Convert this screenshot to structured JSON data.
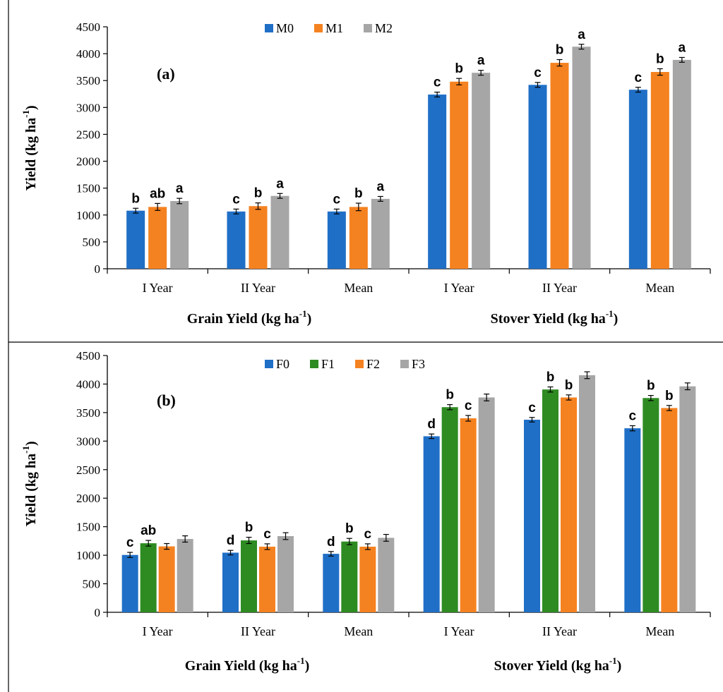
{
  "chart_data": [
    {
      "panel_label": "(a)",
      "type": "bar",
      "ylabel": "Yield (kg ha",
      "ylabel_sup": "-1",
      "ylabel_tail": ")",
      "ylim": [
        0,
        4500
      ],
      "yticks": [
        "0",
        "500",
        "1000",
        "1500",
        "2000",
        "2500",
        "3000",
        "3500",
        "4000",
        "4500"
      ],
      "categories": [
        "I Year",
        "II Year",
        "Mean",
        "I Year",
        "II Year",
        "Mean"
      ],
      "category_groups": [
        {
          "label": "Grain Yield (kg ha",
          "sup": "-1",
          "tail": ")",
          "range": [
            0,
            2
          ]
        },
        {
          "label": "Stover Yield (kg ha",
          "sup": "-1",
          "tail": ")",
          "range": [
            3,
            5
          ]
        }
      ],
      "legend_position": "top-center",
      "series": [
        {
          "name": "M0",
          "color": "#1f6fc6",
          "values": [
            1080,
            1065,
            1065,
            3240,
            3420,
            3330
          ],
          "errors": [
            45,
            45,
            45,
            45,
            45,
            45
          ],
          "letters": [
            "b",
            "c",
            "c",
            "c",
            "c",
            "c"
          ]
        },
        {
          "name": "M1",
          "color": "#f58220",
          "values": [
            1150,
            1165,
            1150,
            3480,
            3830,
            3660
          ],
          "errors": [
            65,
            60,
            70,
            60,
            60,
            60
          ],
          "letters": [
            "ab",
            "b",
            "b",
            "b",
            "b",
            "b"
          ]
        },
        {
          "name": "M2",
          "color": "#a6a6a6",
          "values": [
            1260,
            1355,
            1300,
            3645,
            4130,
            3885
          ],
          "errors": [
            50,
            45,
            45,
            45,
            45,
            45
          ],
          "letters": [
            "a",
            "a",
            "a",
            "a",
            "a",
            "a"
          ]
        }
      ]
    },
    {
      "panel_label": "(b)",
      "type": "bar",
      "ylabel": "Yield (kg ha",
      "ylabel_sup": "-1",
      "ylabel_tail": ")",
      "ylim": [
        0,
        4500
      ],
      "yticks": [
        "0",
        "500",
        "1000",
        "1500",
        "2000",
        "2500",
        "3000",
        "3500",
        "4000",
        "4500"
      ],
      "categories": [
        "I Year",
        "II Year",
        "Mean",
        "I Year",
        "II Year",
        "Mean"
      ],
      "category_groups": [
        {
          "label": "Grain Yield (kg ha",
          "sup": "-1",
          "tail": ")",
          "range": [
            0,
            2
          ]
        },
        {
          "label": "Stover Yield (kg ha",
          "sup": "-1",
          "tail": ")",
          "range": [
            3,
            5
          ]
        }
      ],
      "legend_position": "top-center",
      "series": [
        {
          "name": "F0",
          "color": "#1f6fc6",
          "values": [
            1005,
            1045,
            1025,
            3085,
            3375,
            3225
          ],
          "errors": [
            45,
            40,
            40,
            40,
            40,
            45
          ],
          "letters": [
            "c",
            "d",
            "d",
            "d",
            "c",
            "c"
          ]
        },
        {
          "name": "F1",
          "color": "#2e8b22",
          "values": [
            1210,
            1260,
            1240,
            3595,
            3905,
            3755
          ],
          "errors": [
            50,
            55,
            55,
            45,
            45,
            45
          ],
          "letters": [
            "ab",
            "b",
            "b",
            "b",
            "b",
            "b"
          ]
        },
        {
          "name": "F2",
          "color": "#f58220",
          "values": [
            1155,
            1150,
            1150,
            3400,
            3765,
            3580
          ],
          "errors": [
            50,
            50,
            50,
            50,
            45,
            45
          ],
          "letters": [
            "",
            "c",
            "c",
            "c",
            "b",
            "b"
          ]
        },
        {
          "name": "F3",
          "color": "#a6a6a6",
          "values": [
            1285,
            1335,
            1305,
            3765,
            4155,
            3960
          ],
          "errors": [
            55,
            60,
            60,
            60,
            60,
            60
          ],
          "letters": [
            "",
            "",
            "",
            "",
            "",
            ""
          ]
        }
      ]
    }
  ]
}
